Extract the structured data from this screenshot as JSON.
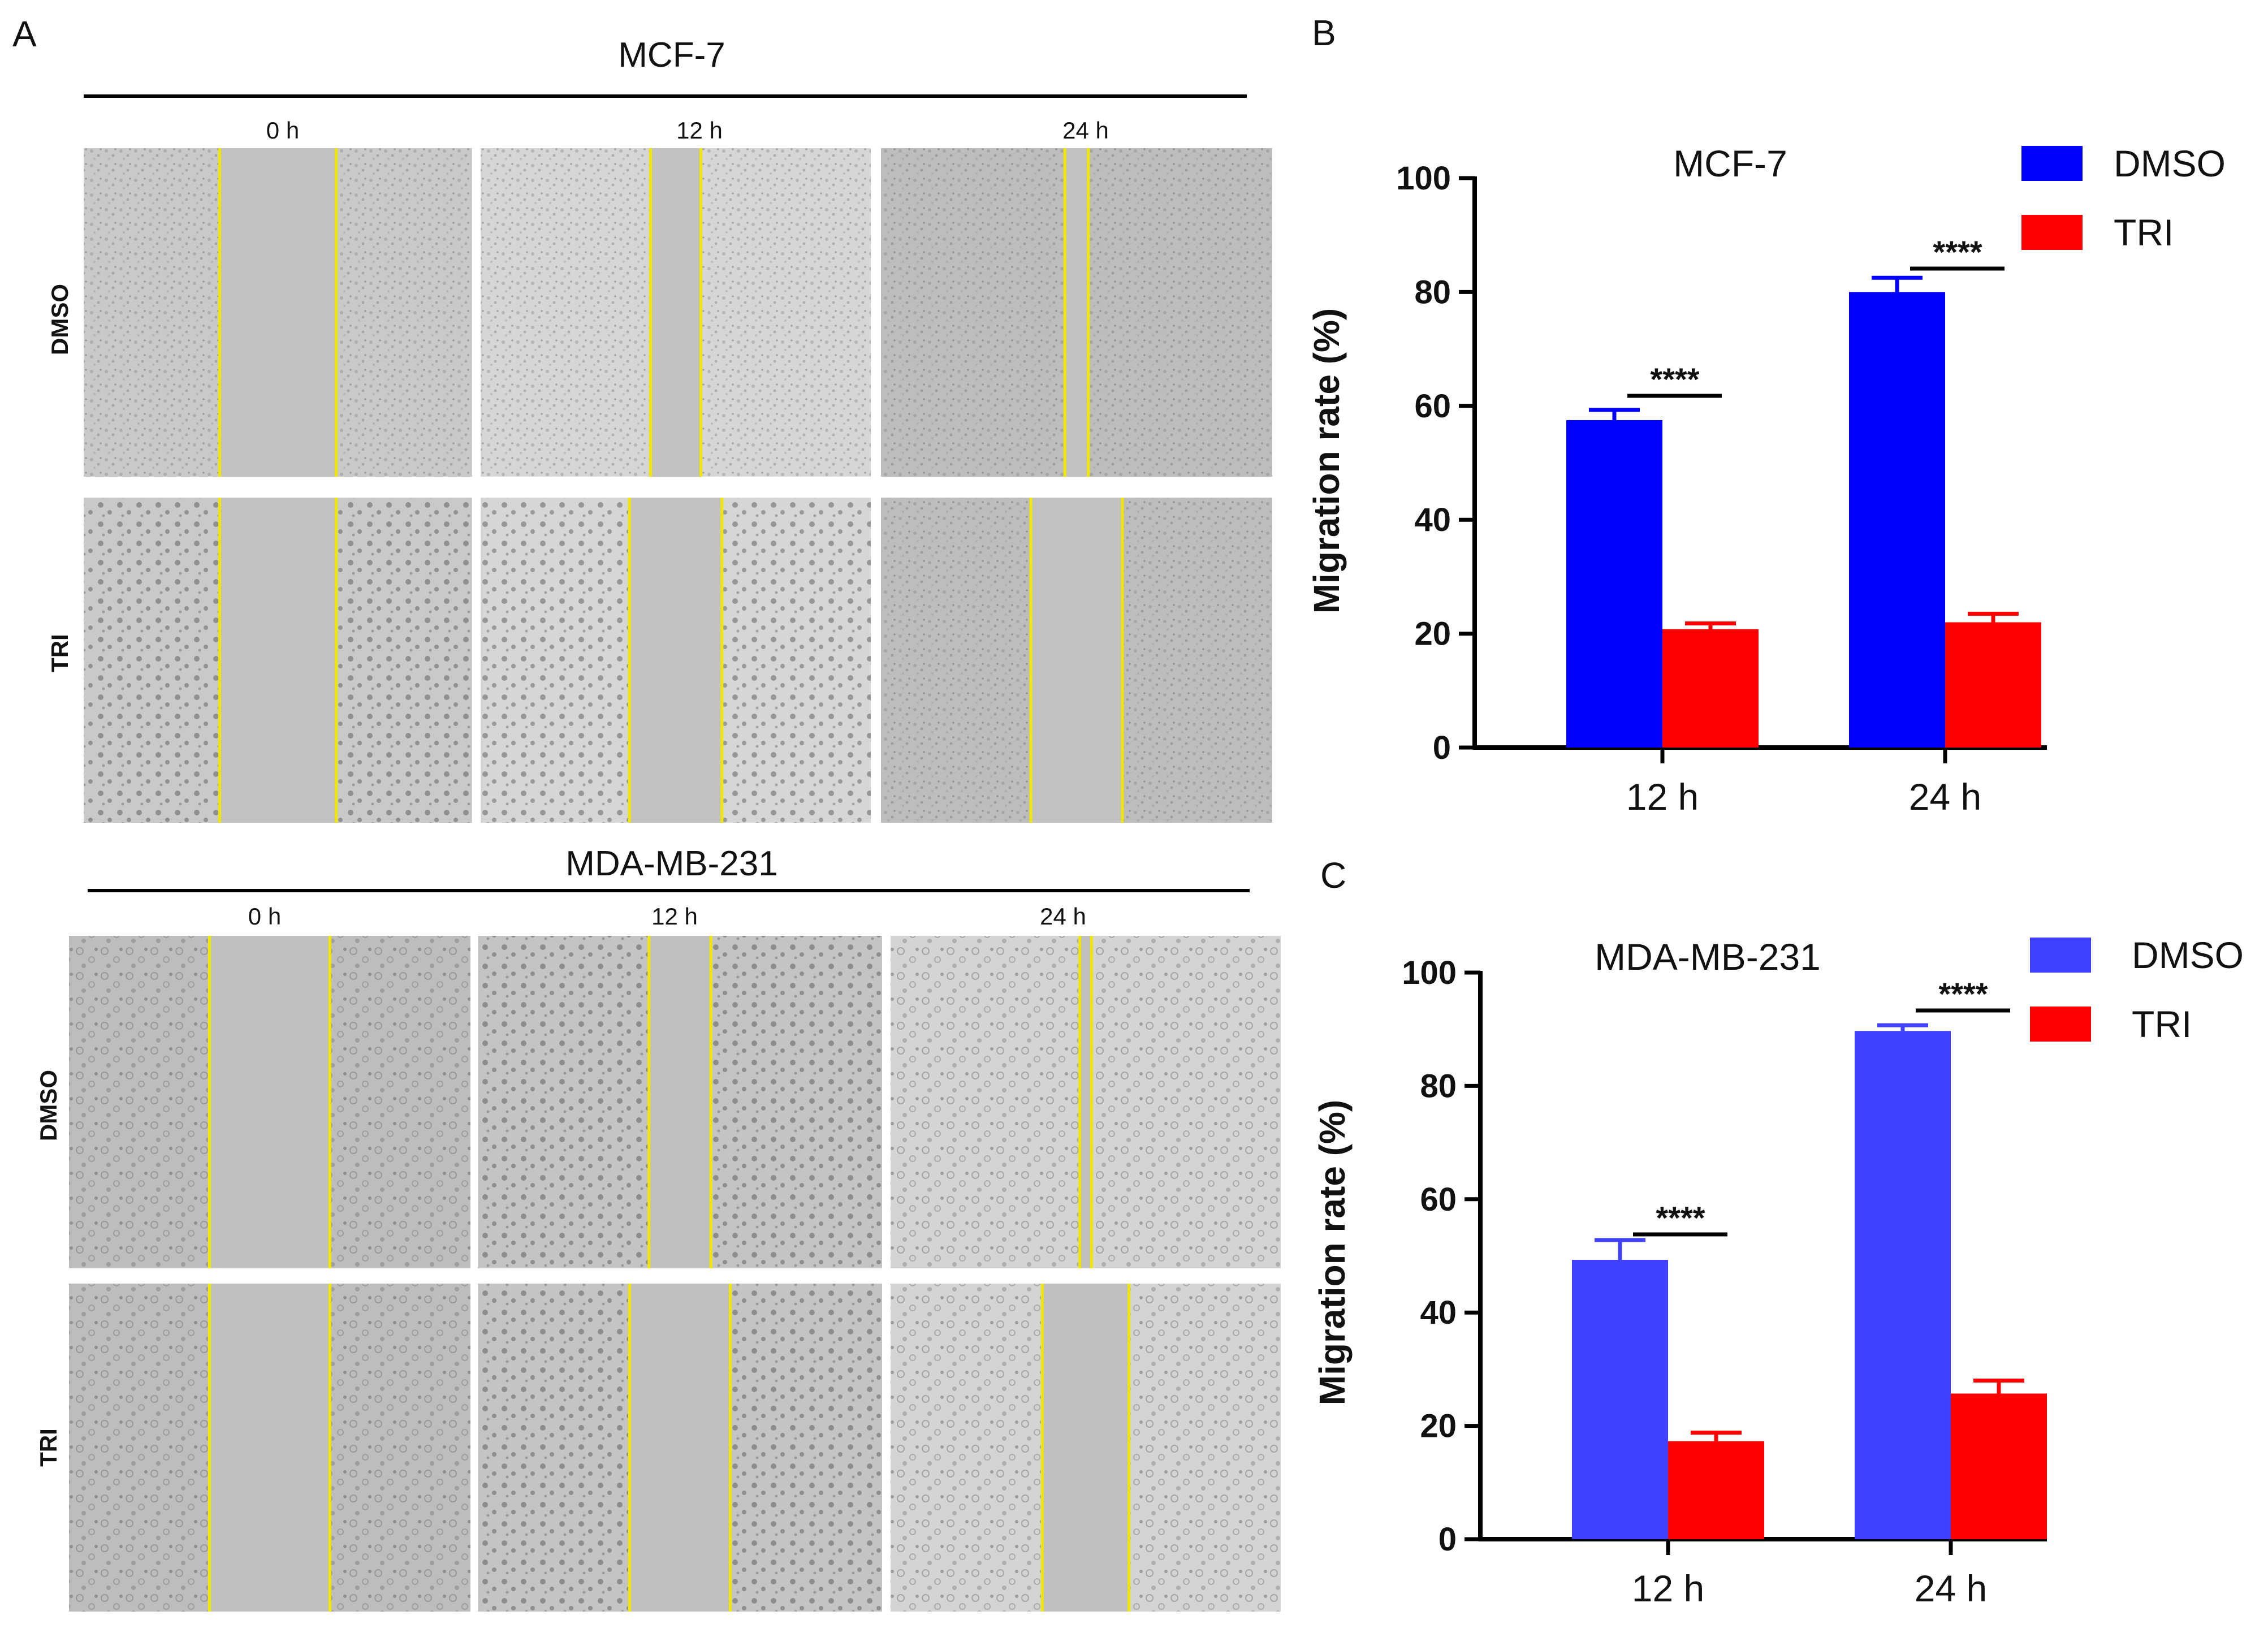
{
  "panels": {
    "a": {
      "letter": "A",
      "row_labels": [
        "DMSO",
        "TRI"
      ],
      "time_labels": [
        "0 h",
        "12 h",
        "24 h"
      ],
      "cell_lines": [
        {
          "title": "MCF-7",
          "gap_fraction_remaining": [
            1.0,
            0.43,
            0.2
          ]
        },
        {
          "title": "MDA-MB-231",
          "gap_fraction_remaining": [
            1.0,
            0.51,
            0.1
          ]
        }
      ],
      "tri_gap_fraction_remaining": [
        [
          1.0,
          0.79,
          0.78
        ],
        [
          1.0,
          0.83,
          0.74
        ]
      ]
    }
  },
  "chart_data": [
    {
      "panel_letter": "B",
      "type": "bar",
      "title": "MCF-7",
      "categories": [
        "12 h",
        "24 h"
      ],
      "ylabel": "Migration rate (%)",
      "xlabel": "",
      "ylim": [
        0,
        100
      ],
      "yticks": [
        0,
        20,
        40,
        60,
        80,
        100
      ],
      "legend": "top-right",
      "series": [
        {
          "name": "DMSO",
          "color": "#0000ff",
          "values": [
            57.5,
            80
          ],
          "errors": [
            1.8,
            2.5
          ]
        },
        {
          "name": "TRI",
          "color": "#ff0000",
          "values": [
            20.8,
            22
          ],
          "errors": [
            1.0,
            1.5
          ]
        }
      ],
      "significance": [
        "****",
        "****"
      ]
    },
    {
      "panel_letter": "C",
      "type": "bar",
      "title": "MDA-MB-231",
      "categories": [
        "12 h",
        "24 h"
      ],
      "ylabel": "Migration rate (%)",
      "xlabel": "",
      "ylim": [
        0,
        100
      ],
      "yticks": [
        0,
        20,
        40,
        60,
        80,
        100
      ],
      "legend": "top-right",
      "series": [
        {
          "name": "DMSO",
          "color": "#4040ff",
          "values": [
            49.3,
            89.7
          ],
          "errors": [
            3.5,
            1.0
          ]
        },
        {
          "name": "TRI",
          "color": "#ff0000",
          "values": [
            17.3,
            25.7
          ],
          "errors": [
            1.5,
            2.3
          ]
        }
      ],
      "significance": [
        "****",
        "****"
      ]
    }
  ]
}
